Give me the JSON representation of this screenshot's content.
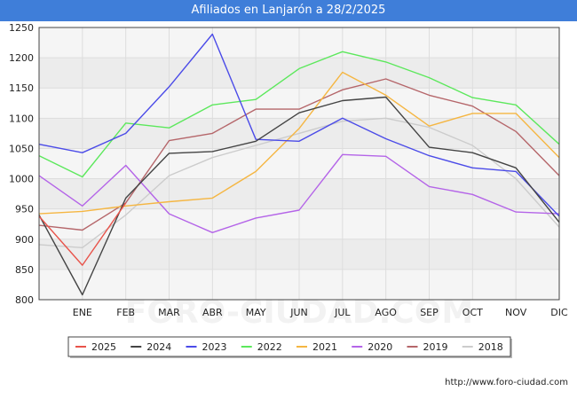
{
  "header": {
    "title": "Afiliados en Lanjarón a 28/2/2025"
  },
  "footer": {
    "url": "http://www.foro-ciudad.com"
  },
  "watermark": {
    "text": "FORO-CIUDAD.COM"
  },
  "chart_data": {
    "type": "line",
    "title": "Afiliados en Lanjarón a 28/2/2025",
    "categories": [
      "",
      "ENE",
      "FEB",
      "MAR",
      "ABR",
      "MAY",
      "JUN",
      "JUL",
      "AGO",
      "SEP",
      "OCT",
      "NOV",
      "DIC"
    ],
    "ylim": [
      800,
      1250
    ],
    "yticks": [
      800,
      850,
      900,
      950,
      1000,
      1050,
      1100,
      1150,
      1200,
      1250
    ],
    "grid": true,
    "legend_position": "bottom",
    "series": [
      {
        "name": "2018",
        "color": "#cccccc",
        "values": [
          891,
          886,
          940,
          1005,
          1035,
          1055,
          1075,
          1095,
          1100,
          1085,
          1055,
          1000,
          920
        ]
      },
      {
        "name": "2019",
        "color": "#b5666a",
        "values": [
          923,
          915,
          960,
          1063,
          1075,
          1115,
          1115,
          1147,
          1165,
          1138,
          1120,
          1078,
          1005
        ]
      },
      {
        "name": "2020",
        "color": "#b464e8",
        "values": [
          1005,
          955,
          1022,
          942,
          911,
          935,
          948,
          1040,
          1037,
          987,
          974,
          945,
          942
        ]
      },
      {
        "name": "2021",
        "color": "#f5b642",
        "values": [
          942,
          946,
          955,
          962,
          968,
          1012,
          1083,
          1176,
          1138,
          1087,
          1108,
          1108,
          1035
        ]
      },
      {
        "name": "2022",
        "color": "#5ce85c",
        "values": [
          1038,
          1003,
          1092,
          1084,
          1122,
          1131,
          1182,
          1210,
          1193,
          1167,
          1134,
          1122,
          1057
        ]
      },
      {
        "name": "2023",
        "color": "#4b4be8",
        "values": [
          1057,
          1043,
          1075,
          1152,
          1239,
          1065,
          1062,
          1100,
          1066,
          1038,
          1018,
          1012,
          938
        ]
      },
      {
        "name": "2024",
        "color": "#444444",
        "values": [
          940,
          808,
          968,
          1042,
          1045,
          1062,
          1109,
          1129,
          1135,
          1052,
          1043,
          1018,
          928
        ]
      },
      {
        "name": "2025",
        "color": "#e8534a",
        "values": [
          938,
          857,
          960,
          null,
          null,
          null,
          null,
          null,
          null,
          null,
          null,
          null,
          null
        ]
      }
    ],
    "legend_order": [
      "2025",
      "2024",
      "2023",
      "2022",
      "2021",
      "2020",
      "2019",
      "2018"
    ]
  }
}
